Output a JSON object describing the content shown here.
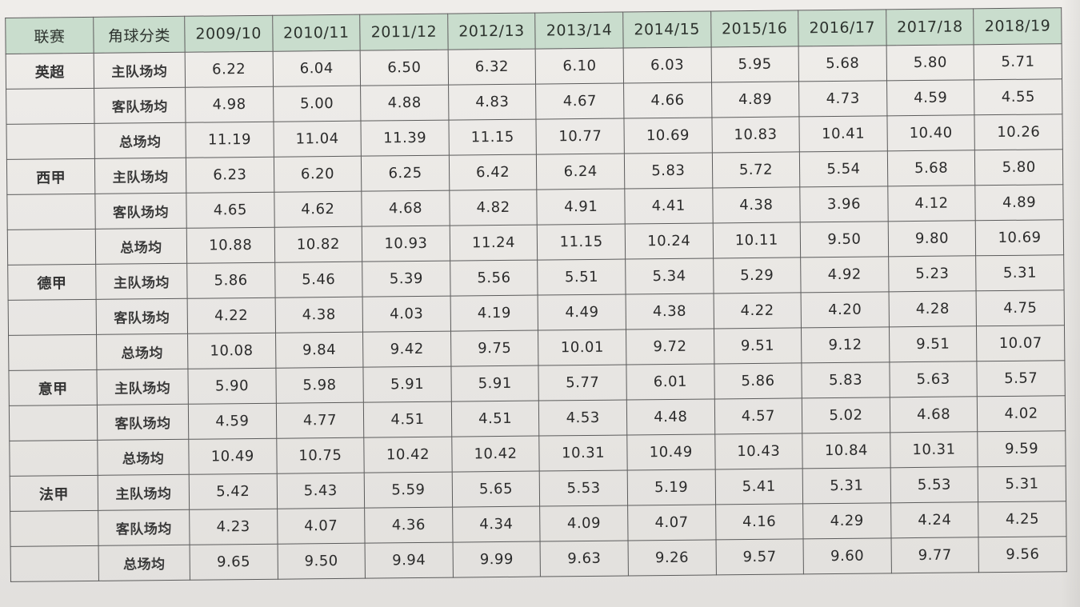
{
  "table": {
    "headers": [
      "联赛",
      "角球分类",
      "2009/10",
      "2010/11",
      "2011/12",
      "2012/13",
      "2013/14",
      "2014/15",
      "2015/16",
      "2016/17",
      "2017/18",
      "2018/19"
    ],
    "leagues": [
      {
        "name": "英超",
        "rows": [
          {
            "category": "主队场均",
            "values": [
              "6.22",
              "6.04",
              "6.50",
              "6.32",
              "6.10",
              "6.03",
              "5.95",
              "5.68",
              "5.80",
              "5.71"
            ]
          },
          {
            "category": "客队场均",
            "values": [
              "4.98",
              "5.00",
              "4.88",
              "4.83",
              "4.67",
              "4.66",
              "4.89",
              "4.73",
              "4.59",
              "4.55"
            ]
          },
          {
            "category": "总场均",
            "values": [
              "11.19",
              "11.04",
              "11.39",
              "11.15",
              "10.77",
              "10.69",
              "10.83",
              "10.41",
              "10.40",
              "10.26"
            ]
          }
        ]
      },
      {
        "name": "西甲",
        "rows": [
          {
            "category": "主队场均",
            "values": [
              "6.23",
              "6.20",
              "6.25",
              "6.42",
              "6.24",
              "5.83",
              "5.72",
              "5.54",
              "5.68",
              "5.80"
            ]
          },
          {
            "category": "客队场均",
            "values": [
              "4.65",
              "4.62",
              "4.68",
              "4.82",
              "4.91",
              "4.41",
              "4.38",
              "3.96",
              "4.12",
              "4.89"
            ]
          },
          {
            "category": "总场均",
            "values": [
              "10.88",
              "10.82",
              "10.93",
              "11.24",
              "11.15",
              "10.24",
              "10.11",
              "9.50",
              "9.80",
              "10.69"
            ]
          }
        ]
      },
      {
        "name": "德甲",
        "rows": [
          {
            "category": "主队场均",
            "values": [
              "5.86",
              "5.46",
              "5.39",
              "5.56",
              "5.51",
              "5.34",
              "5.29",
              "4.92",
              "5.23",
              "5.31"
            ]
          },
          {
            "category": "客队场均",
            "values": [
              "4.22",
              "4.38",
              "4.03",
              "4.19",
              "4.49",
              "4.38",
              "4.22",
              "4.20",
              "4.28",
              "4.75"
            ]
          },
          {
            "category": "总场均",
            "values": [
              "10.08",
              "9.84",
              "9.42",
              "9.75",
              "10.01",
              "9.72",
              "9.51",
              "9.12",
              "9.51",
              "10.07"
            ]
          }
        ]
      },
      {
        "name": "意甲",
        "rows": [
          {
            "category": "主队场均",
            "values": [
              "5.90",
              "5.98",
              "5.91",
              "5.91",
              "5.77",
              "6.01",
              "5.86",
              "5.83",
              "5.63",
              "5.57"
            ]
          },
          {
            "category": "客队场均",
            "values": [
              "4.59",
              "4.77",
              "4.51",
              "4.51",
              "4.53",
              "4.48",
              "4.57",
              "5.02",
              "4.68",
              "4.02"
            ]
          },
          {
            "category": "总场均",
            "values": [
              "10.49",
              "10.75",
              "10.42",
              "10.42",
              "10.31",
              "10.49",
              "10.43",
              "10.84",
              "10.31",
              "9.59"
            ]
          }
        ]
      },
      {
        "name": "法甲",
        "rows": [
          {
            "category": "主队场均",
            "values": [
              "5.42",
              "5.43",
              "5.59",
              "5.65",
              "5.53",
              "5.19",
              "5.41",
              "5.31",
              "5.53",
              "5.31"
            ]
          },
          {
            "category": "客队场均",
            "values": [
              "4.23",
              "4.07",
              "4.36",
              "4.34",
              "4.09",
              "4.07",
              "4.16",
              "4.29",
              "4.24",
              "4.25"
            ]
          },
          {
            "category": "总场均",
            "values": [
              "9.65",
              "9.50",
              "9.94",
              "9.99",
              "9.63",
              "9.26",
              "9.57",
              "9.60",
              "9.77",
              "9.56"
            ]
          }
        ]
      }
    ]
  }
}
